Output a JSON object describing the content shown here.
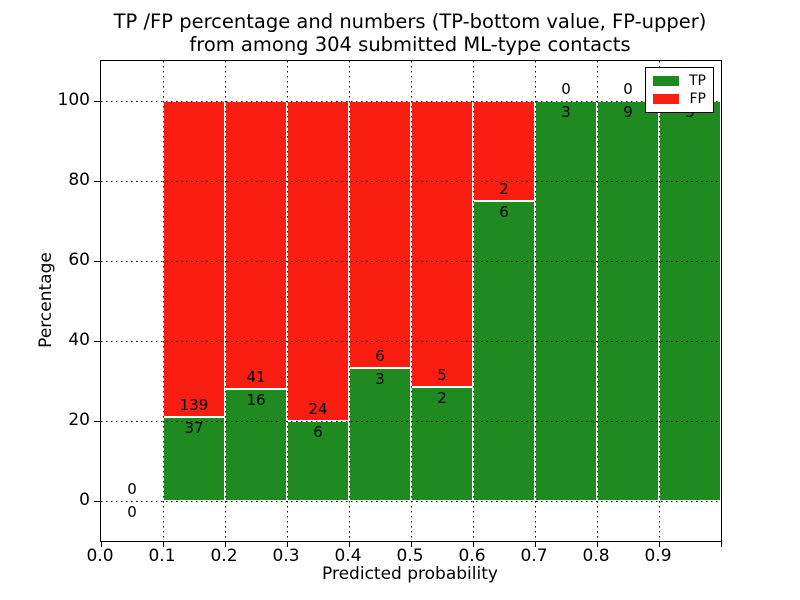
{
  "title": {
    "line1": "TP /FP percentage and numbers (TP-bottom value, FP-upper)",
    "line2": "from among 304 submitted ML-type contacts"
  },
  "axes": {
    "xlabel": "Predicted probability",
    "ylabel": "Percentage",
    "xticks": [
      "0.0",
      "0.1",
      "0.2",
      "0.3",
      "0.4",
      "0.5",
      "0.6",
      "0.7",
      "0.8",
      "0.9"
    ],
    "yticks": [
      0,
      20,
      40,
      60,
      80,
      100
    ],
    "xlim": [
      0.0,
      1.0
    ],
    "ylim": [
      -10,
      110
    ],
    "grid_style": "dotted"
  },
  "legend": {
    "position": "upper right",
    "items": [
      {
        "label": "TP",
        "color": "#1f8a1f"
      },
      {
        "label": "FP",
        "color": "#fa1d12"
      }
    ]
  },
  "colors": {
    "tp": "#1f8a1f",
    "fp": "#fa1d12",
    "background": "#ffffff",
    "text": "#000000",
    "bar_edge": "#ffffff"
  },
  "chart_data": {
    "type": "bar",
    "stacked": true,
    "normalized_to_percent": true,
    "title": "TP /FP percentage and numbers (TP-bottom value, FP-upper) from among 304 submitted ML-type contacts",
    "xlabel": "Predicted probability",
    "ylabel": "Percentage",
    "total_contacts": 304,
    "bins": [
      "0.0-0.1",
      "0.1-0.2",
      "0.2-0.3",
      "0.3-0.4",
      "0.4-0.5",
      "0.5-0.6",
      "0.6-0.7",
      "0.7-0.8",
      "0.8-0.9",
      "0.9-1.0"
    ],
    "series": [
      {
        "name": "TP",
        "values": [
          0,
          37,
          16,
          6,
          3,
          2,
          6,
          3,
          9,
          5
        ]
      },
      {
        "name": "FP",
        "values": [
          0,
          139,
          41,
          24,
          6,
          5,
          2,
          0,
          0,
          0
        ]
      }
    ],
    "tp_percent": [
      0,
      21.02,
      28.07,
      20.0,
      33.33,
      28.57,
      75.0,
      100.0,
      100.0,
      100.0
    ],
    "fp_percent": [
      0,
      78.98,
      71.93,
      80.0,
      66.67,
      71.43,
      25.0,
      0.0,
      0.0,
      0.0
    ]
  }
}
